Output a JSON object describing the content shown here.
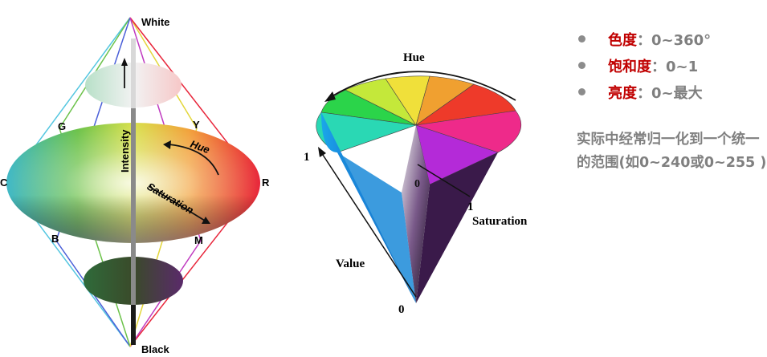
{
  "hsi_labels": {
    "white": "White",
    "black": "Black",
    "g": "G",
    "y": "Y",
    "c": "C",
    "r": "R",
    "b": "B",
    "m": "M",
    "intensity": "Intensity",
    "hue": "Hue",
    "saturation": "Saturation"
  },
  "hsv_labels": {
    "hue": "Hue",
    "saturation": "Saturation",
    "value": "Value",
    "one_value": "1",
    "one_sat": "1",
    "zero_center": "0",
    "zero_apex": "0"
  },
  "bullets": [
    {
      "term": "色度",
      "range": "：0~360°"
    },
    {
      "term": "饱和度",
      "range": "：0~1"
    },
    {
      "term": "亮度",
      "range": "：0~最大"
    }
  ],
  "note": "实际中经常归一化到一个统一的范围(如0~240或0~255 )",
  "colors": {
    "term_red": "#c00000",
    "text_gray": "#7f7f7f"
  }
}
